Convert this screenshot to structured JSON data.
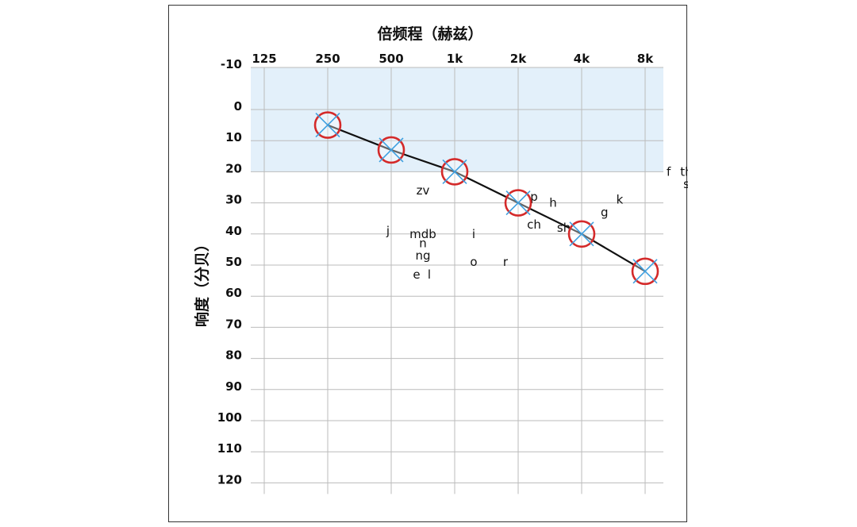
{
  "chart_data": {
    "type": "line",
    "xlabel": "倍频程（赫兹）",
    "ylabel": "响度（分贝）",
    "x_ticks": [
      "125",
      "250",
      "500",
      "1k",
      "2k",
      "4k",
      "8k"
    ],
    "y_ticks": [
      -10,
      0,
      10,
      20,
      30,
      40,
      50,
      60,
      70,
      80,
      90,
      100,
      110,
      120
    ],
    "ylim": [
      -10,
      120
    ],
    "y_inverted": true,
    "shaded_band": {
      "from": -10,
      "to": 20,
      "color": "#e3f0fa"
    },
    "series": [
      {
        "x": [
          "250",
          "500",
          "1k",
          "2k",
          "4k",
          "8k"
        ],
        "values": [
          5,
          13,
          20,
          30,
          40,
          52
        ]
      }
    ],
    "speech_sounds": [
      {
        "text": "zv",
        "x": 2.5,
        "y": 26
      },
      {
        "text": "j",
        "x": 1.95,
        "y": 39
      },
      {
        "text": "mdb",
        "x": 2.5,
        "y": 40
      },
      {
        "text": "n",
        "x": 2.5,
        "y": 43
      },
      {
        "text": "ng",
        "x": 2.5,
        "y": 47
      },
      {
        "text": "e",
        "x": 2.4,
        "y": 53
      },
      {
        "text": "l",
        "x": 2.6,
        "y": 53
      },
      {
        "text": "i",
        "x": 3.3,
        "y": 40
      },
      {
        "text": "o",
        "x": 3.3,
        "y": 49
      },
      {
        "text": "r",
        "x": 3.8,
        "y": 49
      },
      {
        "text": "p",
        "x": 4.25,
        "y": 28
      },
      {
        "text": "h",
        "x": 4.55,
        "y": 30
      },
      {
        "text": "ch",
        "x": 4.25,
        "y": 37
      },
      {
        "text": "sh",
        "x": 4.72,
        "y": 38
      },
      {
        "text": "g",
        "x": 5.36,
        "y": 33
      },
      {
        "text": "k",
        "x": 5.6,
        "y": 29
      },
      {
        "text": "f",
        "x": 6.37,
        "y": 20
      },
      {
        "text": "th",
        "x": 6.65,
        "y": 20
      },
      {
        "text": "s",
        "x": 6.65,
        "y": 24
      }
    ],
    "colors": {
      "line": "#111111",
      "circle": "#d42a2a",
      "cross": "#3fa0e0",
      "grid": "#bbbbbb"
    },
    "grid": true
  }
}
